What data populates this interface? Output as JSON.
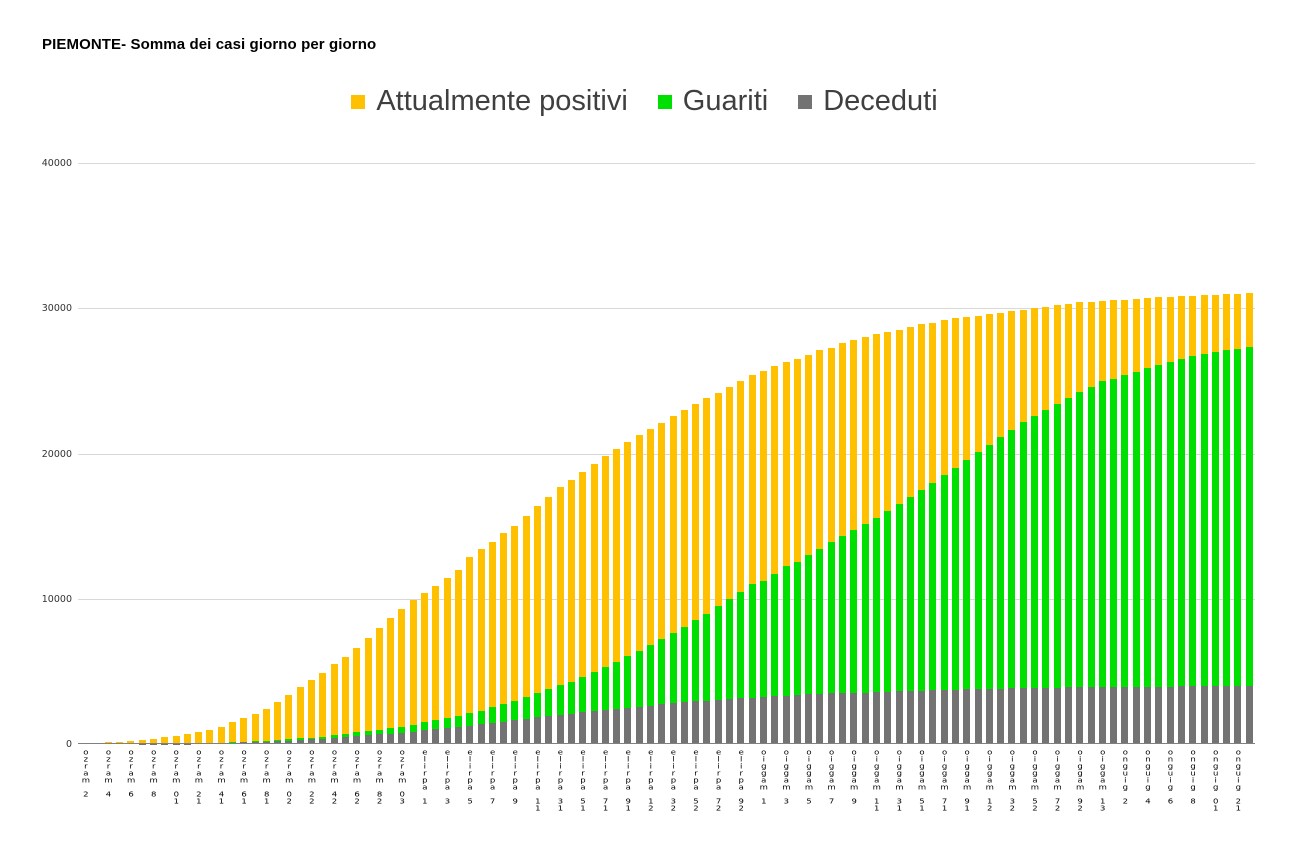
{
  "title": "PIEMONTE- Somma dei casi giorno per giorno",
  "legend": [
    {
      "label": "Attualmente positivi",
      "color": "#FFC000"
    },
    {
      "label": "Guariti",
      "color": "#00E000"
    },
    {
      "label": "Deceduti",
      "color": "#737373"
    }
  ],
  "chart_data": {
    "type": "bar",
    "stacked": true,
    "title": "PIEMONTE- Somma dei casi giorno per giorno",
    "xlabel": "",
    "ylabel": "",
    "ylim": [
      0,
      40000
    ],
    "y_ticks": [
      0,
      10000,
      20000,
      30000,
      40000
    ],
    "grid": "horizontal",
    "legend_position": "top",
    "x_label_every": 2,
    "x_tick_labels": [
      "2 marzo",
      "4 marzo",
      "6 marzo",
      "8 marzo",
      "10 marzo",
      "12 marzo",
      "14 marzo",
      "16 marzo",
      "18 marzo",
      "20 marzo",
      "22 marzo",
      "24 marzo",
      "26 marzo",
      "28 marzo",
      "30 marzo",
      "1 aprile",
      "3 aprile",
      "5 aprile",
      "7 aprile",
      "9 aprile",
      "11 aprile",
      "13 aprile",
      "15 aprile",
      "17 aprile",
      "19 aprile",
      "21 aprile",
      "23 aprile",
      "25 aprile",
      "27 aprile",
      "29 aprile",
      "1 maggio",
      "3 maggio",
      "5 maggio",
      "7 maggio",
      "9 maggio",
      "11 maggio",
      "13 maggio",
      "15 maggio",
      "17 maggio",
      "19 maggio",
      "21 maggio",
      "23 maggio",
      "25 maggio",
      "27 maggio",
      "29 maggio",
      "31 maggio",
      "2 giugno",
      "4 giugno",
      "6 giugno",
      "8 giugno",
      "10 giugno",
      "12 giugno"
    ],
    "series": [
      {
        "name": "Deceduti",
        "color": "#737373",
        "values": [
          1,
          1,
          2,
          4,
          5,
          9,
          17,
          22,
          27,
          35,
          44,
          59,
          81,
          100,
          111,
          133,
          154,
          199,
          238,
          283,
          315,
          365,
          433,
          500,
          566,
          617,
          677,
          718,
          784,
          854,
          943,
          1032,
          1128,
          1201,
          1268,
          1345,
          1454,
          1532,
          1633,
          1740,
          1830,
          1927,
          2015,
          2085,
          2171,
          2270,
          2346,
          2412,
          2493,
          2552,
          2631,
          2723,
          2793,
          2859,
          2928,
          2969,
          3031,
          3102,
          3153,
          3186,
          3232,
          3288,
          3340,
          3373,
          3421,
          3459,
          3489,
          3516,
          3532,
          3542,
          3565,
          3592,
          3616,
          3640,
          3662,
          3689,
          3720,
          3735,
          3757,
          3775,
          3794,
          3809,
          3827,
          3841,
          3851,
          3866,
          3881,
          3892,
          3904,
          3910,
          3916,
          3921,
          3926,
          3933,
          3944,
          3950,
          3957,
          3963,
          3968,
          3975,
          3982,
          3988,
          3995,
          4000
        ]
      },
      {
        "name": "Guariti",
        "color": "#00E000",
        "values": [
          0,
          0,
          0,
          0,
          0,
          0,
          0,
          0,
          0,
          5,
          10,
          15,
          20,
          30,
          40,
          50,
          60,
          75,
          90,
          100,
          120,
          150,
          170,
          200,
          240,
          280,
          320,
          370,
          420,
          480,
          540,
          600,
          670,
          750,
          850,
          950,
          1070,
          1200,
          1350,
          1500,
          1670,
          1850,
          2020,
          2200,
          2440,
          2700,
          2970,
          3250,
          3540,
          3850,
          4170,
          4500,
          4840,
          5200,
          5590,
          6000,
          6440,
          6900,
          7340,
          7800,
          8000,
          8450,
          8895,
          9160,
          9600,
          10000,
          10400,
          10800,
          11200,
          11600,
          12000,
          12450,
          12900,
          13350,
          13800,
          14300,
          14800,
          15300,
          15800,
          16300,
          16800,
          17300,
          17800,
          18300,
          18700,
          19100,
          19500,
          19900,
          20300,
          20700,
          21100,
          21200,
          21450,
          21700,
          21950,
          22150,
          22350,
          22550,
          22720,
          22880,
          23020,
          23130,
          23230,
          23320
        ]
      },
      {
        "name": "Attualmente positivi",
        "color": "#FFC000",
        "values": [
          49,
          79,
          108,
          146,
          195,
          261,
          343,
          428,
          533,
          660,
          796,
          926,
          1099,
          1370,
          1649,
          1917,
          2186,
          2626,
          3072,
          3517,
          3965,
          4385,
          4897,
          5300,
          5794,
          6403,
          7003,
          7612,
          8096,
          8566,
          8917,
          9268,
          9602,
          10049,
          10782,
          11105,
          11376,
          11768,
          12017,
          12460,
          12900,
          13223,
          13665,
          13915,
          14089,
          14330,
          14484,
          14638,
          14767,
          14898,
          14899,
          14877,
          14967,
          14941,
          14882,
          14831,
          14729,
          14598,
          14507,
          14414,
          14468,
          14262,
          14065,
          13967,
          13779,
          13641,
          13411,
          13284,
          13068,
          12858,
          12635,
          12358,
          11984,
          11710,
          11438,
          11011,
          10680,
          10265,
          9843,
          9425,
          9006,
          8591,
          8173,
          7759,
          7449,
          7134,
          6819,
          6508,
          6196,
          5840,
          5484,
          5429,
          5224,
          5017,
          4806,
          4650,
          4493,
          4337,
          4192,
          4055,
          3938,
          3852,
          3775,
          3710
        ]
      }
    ]
  }
}
